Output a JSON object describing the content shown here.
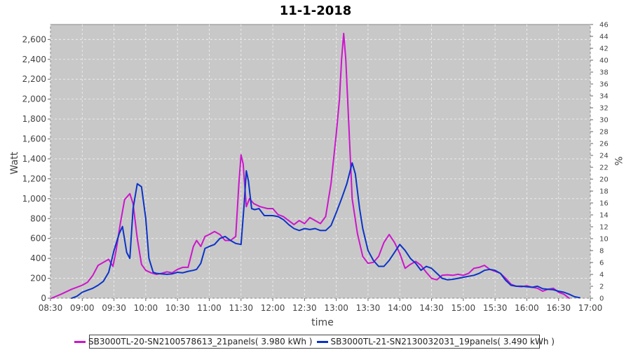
{
  "chart_data": {
    "type": "line",
    "title": "11-1-2018",
    "xlabel": "time",
    "ylabel": "Watt",
    "y2label": "%",
    "ylim": [
      0,
      2750
    ],
    "y2lim": [
      0,
      46
    ],
    "xlim": [
      "08:30",
      "17:00"
    ],
    "grid": true,
    "legend_position": "bottom",
    "x_ticks": [
      "08:30",
      "09:00",
      "09:30",
      "10:00",
      "10:30",
      "11:00",
      "11:30",
      "12:00",
      "12:30",
      "13:00",
      "13:30",
      "14:00",
      "14:30",
      "15:00",
      "15:30",
      "16:00",
      "16:30",
      "17:00"
    ],
    "y_ticks": [
      "0",
      "200",
      "400",
      "600",
      "800",
      "1,000",
      "1,200",
      "1,400",
      "1,600",
      "1,800",
      "2,000",
      "2,200",
      "2,400",
      "2,600"
    ],
    "y2_ticks": [
      "0",
      "2",
      "4",
      "6",
      "8",
      "10",
      "12",
      "14",
      "16",
      "18",
      "20",
      "22",
      "24",
      "26",
      "28",
      "30",
      "32",
      "34",
      "36",
      "38",
      "40",
      "42",
      "44",
      "46"
    ],
    "series": [
      {
        "name": "SB3000TL-20-SN2100578613_21panels( 3.980 kWh )",
        "color": "#cc16cc",
        "points": [
          [
            "08:31",
            0
          ],
          [
            "08:40",
            40
          ],
          [
            "08:50",
            90
          ],
          [
            "09:00",
            130
          ],
          [
            "09:05",
            160
          ],
          [
            "09:10",
            230
          ],
          [
            "09:15",
            330
          ],
          [
            "09:20",
            360
          ],
          [
            "09:25",
            390
          ],
          [
            "09:29",
            320
          ],
          [
            "09:32",
            480
          ],
          [
            "09:36",
            750
          ],
          [
            "09:40",
            990
          ],
          [
            "09:45",
            1050
          ],
          [
            "09:48",
            950
          ],
          [
            "09:52",
            600
          ],
          [
            "09:56",
            340
          ],
          [
            "10:00",
            280
          ],
          [
            "10:05",
            255
          ],
          [
            "10:10",
            240
          ],
          [
            "10:15",
            250
          ],
          [
            "10:20",
            265
          ],
          [
            "10:25",
            255
          ],
          [
            "10:30",
            290
          ],
          [
            "10:35",
            310
          ],
          [
            "10:40",
            310
          ],
          [
            "10:45",
            520
          ],
          [
            "10:48",
            580
          ],
          [
            "10:52",
            520
          ],
          [
            "10:56",
            620
          ],
          [
            "11:00",
            640
          ],
          [
            "11:05",
            670
          ],
          [
            "11:10",
            640
          ],
          [
            "11:15",
            580
          ],
          [
            "11:20",
            580
          ],
          [
            "11:25",
            620
          ],
          [
            "11:28",
            1150
          ],
          [
            "11:30",
            1440
          ],
          [
            "11:32",
            1350
          ],
          [
            "11:35",
            920
          ],
          [
            "11:38",
            1000
          ],
          [
            "11:42",
            950
          ],
          [
            "11:48",
            920
          ],
          [
            "11:55",
            900
          ],
          [
            "12:00",
            900
          ],
          [
            "12:05",
            840
          ],
          [
            "12:10",
            820
          ],
          [
            "12:15",
            780
          ],
          [
            "12:20",
            740
          ],
          [
            "12:25",
            780
          ],
          [
            "12:30",
            750
          ],
          [
            "12:35",
            810
          ],
          [
            "12:40",
            780
          ],
          [
            "12:45",
            750
          ],
          [
            "12:50",
            820
          ],
          [
            "12:55",
            1150
          ],
          [
            "13:00",
            1650
          ],
          [
            "13:03",
            2000
          ],
          [
            "13:05",
            2400
          ],
          [
            "13:07",
            2660
          ],
          [
            "13:09",
            2400
          ],
          [
            "13:12",
            1700
          ],
          [
            "13:15",
            1000
          ],
          [
            "13:20",
            650
          ],
          [
            "13:25",
            420
          ],
          [
            "13:30",
            350
          ],
          [
            "13:35",
            360
          ],
          [
            "13:40",
            420
          ],
          [
            "13:45",
            560
          ],
          [
            "13:50",
            640
          ],
          [
            "13:55",
            560
          ],
          [
            "14:00",
            450
          ],
          [
            "14:05",
            300
          ],
          [
            "14:10",
            340
          ],
          [
            "14:15",
            370
          ],
          [
            "14:20",
            330
          ],
          [
            "14:25",
            260
          ],
          [
            "14:30",
            200
          ],
          [
            "14:35",
            185
          ],
          [
            "14:40",
            230
          ],
          [
            "14:45",
            235
          ],
          [
            "14:50",
            230
          ],
          [
            "14:55",
            240
          ],
          [
            "15:00",
            230
          ],
          [
            "15:05",
            250
          ],
          [
            "15:10",
            300
          ],
          [
            "15:15",
            310
          ],
          [
            "15:20",
            330
          ],
          [
            "15:25",
            290
          ],
          [
            "15:30",
            270
          ],
          [
            "15:35",
            250
          ],
          [
            "15:40",
            200
          ],
          [
            "15:45",
            140
          ],
          [
            "15:50",
            120
          ],
          [
            "15:55",
            115
          ],
          [
            "16:00",
            125
          ],
          [
            "16:05",
            110
          ],
          [
            "16:10",
            100
          ],
          [
            "16:15",
            70
          ],
          [
            "16:20",
            90
          ],
          [
            "16:25",
            100
          ],
          [
            "16:30",
            60
          ],
          [
            "16:35",
            40
          ],
          [
            "16:40",
            0
          ]
        ]
      },
      {
        "name": "SB3000TL-21-SN2130032031_19panels( 3.490 kWh )",
        "color": "#0b33c8",
        "points": [
          [
            "08:50",
            0
          ],
          [
            "08:55",
            20
          ],
          [
            "09:00",
            60
          ],
          [
            "09:05",
            80
          ],
          [
            "09:10",
            100
          ],
          [
            "09:15",
            130
          ],
          [
            "09:20",
            170
          ],
          [
            "09:25",
            260
          ],
          [
            "09:30",
            480
          ],
          [
            "09:35",
            650
          ],
          [
            "09:38",
            720
          ],
          [
            "09:42",
            460
          ],
          [
            "09:45",
            400
          ],
          [
            "09:48",
            900
          ],
          [
            "09:52",
            1150
          ],
          [
            "09:56",
            1120
          ],
          [
            "10:00",
            800
          ],
          [
            "10:03",
            400
          ],
          [
            "10:07",
            260
          ],
          [
            "10:10",
            250
          ],
          [
            "10:15",
            245
          ],
          [
            "10:20",
            240
          ],
          [
            "10:25",
            245
          ],
          [
            "10:30",
            260
          ],
          [
            "10:35",
            255
          ],
          [
            "10:40",
            270
          ],
          [
            "10:45",
            280
          ],
          [
            "10:48",
            290
          ],
          [
            "10:52",
            350
          ],
          [
            "10:56",
            500
          ],
          [
            "11:00",
            520
          ],
          [
            "11:05",
            540
          ],
          [
            "11:10",
            600
          ],
          [
            "11:15",
            620
          ],
          [
            "11:20",
            580
          ],
          [
            "11:25",
            550
          ],
          [
            "11:30",
            540
          ],
          [
            "11:33",
            950
          ],
          [
            "11:35",
            1280
          ],
          [
            "11:37",
            1180
          ],
          [
            "11:40",
            900
          ],
          [
            "11:43",
            890
          ],
          [
            "11:47",
            900
          ],
          [
            "11:52",
            830
          ],
          [
            "12:00",
            830
          ],
          [
            "12:05",
            820
          ],
          [
            "12:10",
            790
          ],
          [
            "12:15",
            740
          ],
          [
            "12:20",
            700
          ],
          [
            "12:25",
            680
          ],
          [
            "12:30",
            700
          ],
          [
            "12:35",
            690
          ],
          [
            "12:40",
            700
          ],
          [
            "12:45",
            680
          ],
          [
            "12:50",
            680
          ],
          [
            "12:55",
            730
          ],
          [
            "13:00",
            860
          ],
          [
            "13:05",
            1000
          ],
          [
            "13:10",
            1150
          ],
          [
            "13:15",
            1360
          ],
          [
            "13:18",
            1250
          ],
          [
            "13:22",
            900
          ],
          [
            "13:25",
            700
          ],
          [
            "13:30",
            480
          ],
          [
            "13:35",
            380
          ],
          [
            "13:40",
            320
          ],
          [
            "13:45",
            320
          ],
          [
            "13:50",
            380
          ],
          [
            "13:55",
            460
          ],
          [
            "14:00",
            540
          ],
          [
            "14:05",
            480
          ],
          [
            "14:10",
            400
          ],
          [
            "14:15",
            350
          ],
          [
            "14:20",
            280
          ],
          [
            "14:25",
            320
          ],
          [
            "14:30",
            300
          ],
          [
            "14:35",
            250
          ],
          [
            "14:40",
            200
          ],
          [
            "14:45",
            185
          ],
          [
            "14:50",
            190
          ],
          [
            "14:55",
            200
          ],
          [
            "15:00",
            210
          ],
          [
            "15:05",
            220
          ],
          [
            "15:10",
            230
          ],
          [
            "15:15",
            250
          ],
          [
            "15:20",
            280
          ],
          [
            "15:25",
            290
          ],
          [
            "15:30",
            280
          ],
          [
            "15:35",
            250
          ],
          [
            "15:40",
            180
          ],
          [
            "15:45",
            130
          ],
          [
            "15:50",
            120
          ],
          [
            "15:55",
            120
          ],
          [
            "16:00",
            115
          ],
          [
            "16:05",
            110
          ],
          [
            "16:10",
            120
          ],
          [
            "16:15",
            95
          ],
          [
            "16:20",
            90
          ],
          [
            "16:25",
            85
          ],
          [
            "16:30",
            70
          ],
          [
            "16:35",
            60
          ],
          [
            "16:40",
            40
          ],
          [
            "16:45",
            15
          ],
          [
            "16:50",
            5
          ]
        ]
      }
    ]
  }
}
